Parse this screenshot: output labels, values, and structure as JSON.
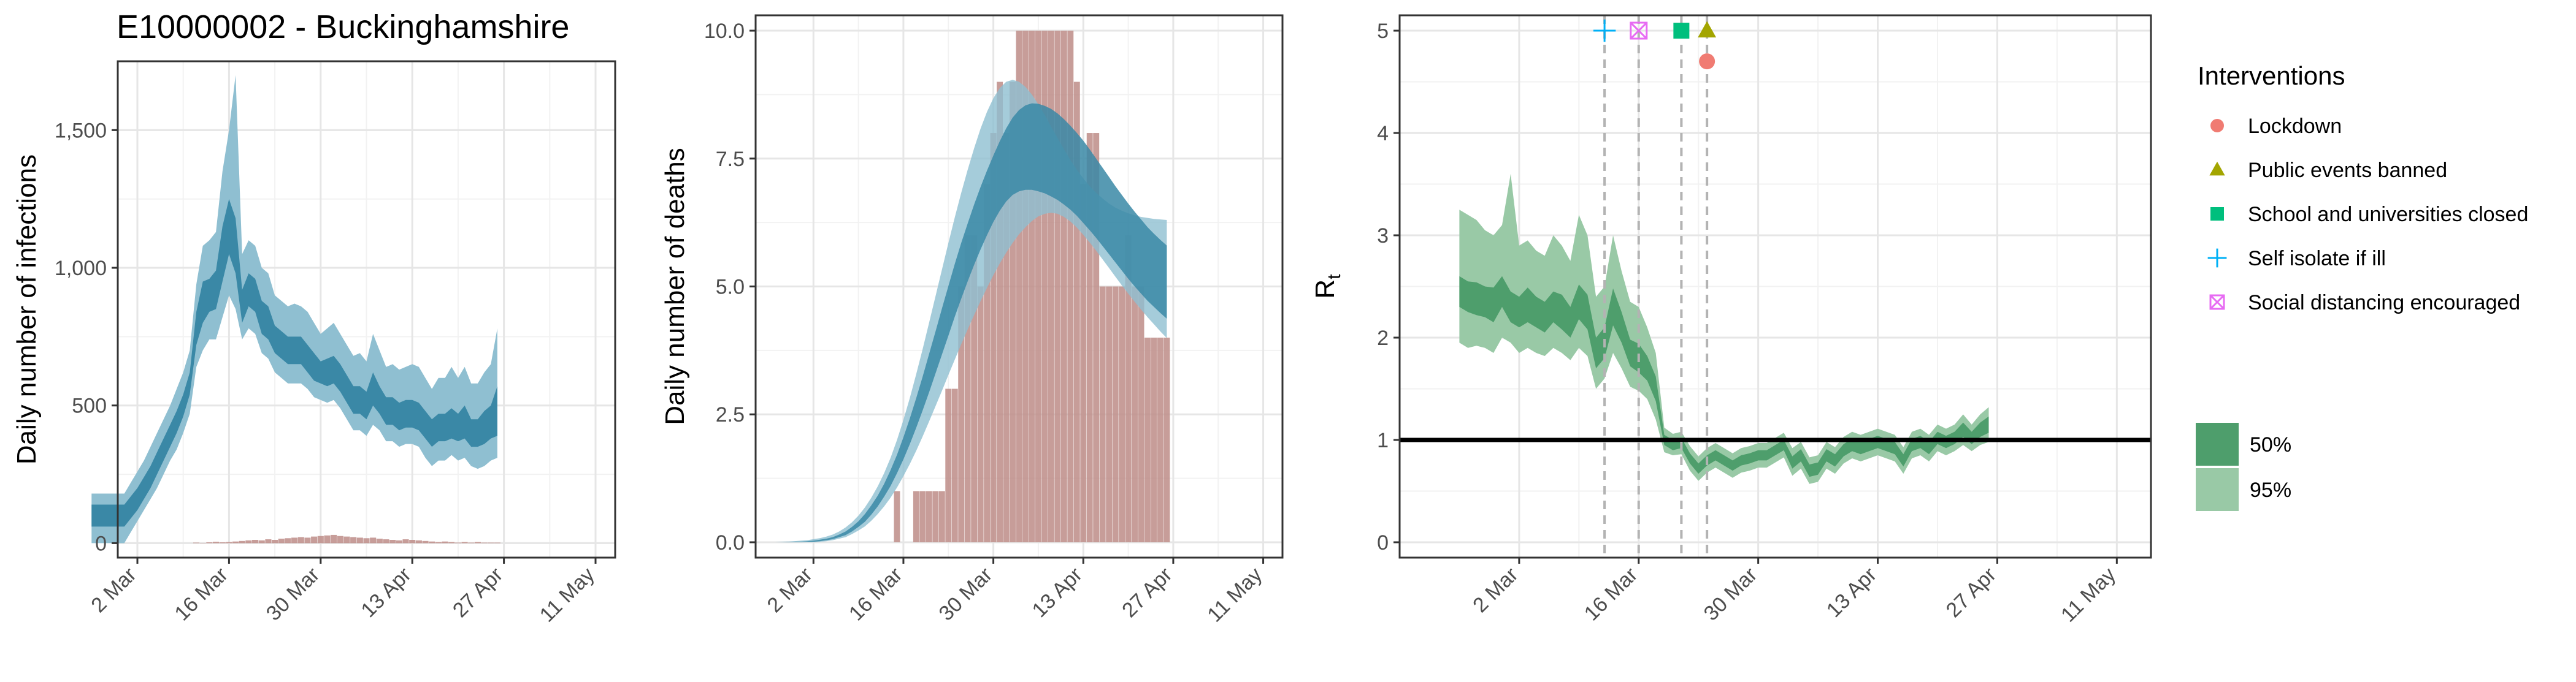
{
  "title": "E10000002 - Buckinghamshire",
  "x_tick_labels": [
    "2 Mar",
    "16 Mar",
    "30 Mar",
    "13 Apr",
    "27 Apr",
    "11 May"
  ],
  "colors": {
    "blue_band_50": "#3a88a6",
    "blue_band_95": "#8fbfd1",
    "bars": "#bd8c87",
    "green_band_50": "#4e9e6c",
    "green_band_95": "#99c9a6",
    "lockdown": "#f07b72",
    "public_events": "#a3a500",
    "school": "#00bf7d",
    "self_isolate": "#00b0f6",
    "social_distancing": "#e76bf3"
  },
  "chart_data": [
    {
      "type": "area",
      "ylabel": "Daily number of infections",
      "y_ticks": [
        "0",
        "500",
        "1,000",
        "1,500"
      ],
      "ylim": [
        0,
        1750
      ],
      "start_date": "2020-02-24",
      "bands": {
        "median": [
          100,
          100,
          100,
          100,
          100,
          100,
          130,
          160,
          200,
          240,
          290,
          340,
          390,
          440,
          500,
          580,
          780,
          880,
          900,
          920,
          1050,
          1150,
          1080,
          850,
          920,
          900,
          820,
          800,
          740,
          720,
          700,
          700,
          700,
          670,
          640,
          620,
          620,
          630,
          600,
          560,
          520,
          520,
          500,
          560,
          520,
          480,
          480,
          460,
          470,
          470,
          460,
          430,
          400,
          420,
          420,
          430,
          420,
          440,
          400,
          400,
          420,
          440,
          480
        ],
        "lo50": [
          60,
          60,
          60,
          60,
          60,
          60,
          90,
          120,
          160,
          200,
          250,
          300,
          350,
          400,
          460,
          540,
          720,
          800,
          840,
          850,
          950,
          1050,
          980,
          800,
          860,
          840,
          760,
          740,
          690,
          670,
          650,
          650,
          650,
          620,
          590,
          580,
          570,
          580,
          550,
          510,
          470,
          470,
          450,
          500,
          470,
          430,
          430,
          410,
          420,
          420,
          410,
          380,
          350,
          370,
          370,
          380,
          370,
          380,
          350,
          350,
          360,
          380,
          390
        ],
        "hi50": [
          140,
          140,
          140,
          140,
          140,
          140,
          170,
          200,
          240,
          280,
          330,
          380,
          430,
          480,
          540,
          620,
          840,
          950,
          960,
          990,
          1150,
          1250,
          1180,
          920,
          980,
          960,
          880,
          860,
          790,
          770,
          750,
          750,
          750,
          720,
          690,
          660,
          670,
          680,
          650,
          610,
          570,
          570,
          550,
          620,
          570,
          530,
          530,
          510,
          520,
          520,
          510,
          480,
          450,
          470,
          470,
          490,
          470,
          500,
          450,
          450,
          480,
          500,
          570
        ],
        "lo95": [
          0,
          0,
          0,
          0,
          0,
          0,
          40,
          80,
          120,
          160,
          200,
          250,
          300,
          340,
          400,
          470,
          640,
          700,
          740,
          740,
          820,
          900,
          850,
          740,
          780,
          760,
          690,
          670,
          620,
          600,
          580,
          580,
          580,
          560,
          530,
          520,
          510,
          520,
          490,
          450,
          410,
          410,
          390,
          430,
          410,
          370,
          370,
          350,
          360,
          360,
          350,
          310,
          280,
          300,
          300,
          320,
          300,
          310,
          280,
          270,
          280,
          300,
          310
        ],
        "hi95": [
          180,
          180,
          180,
          180,
          180,
          180,
          220,
          260,
          300,
          350,
          400,
          450,
          500,
          560,
          620,
          700,
          940,
          1080,
          1100,
          1130,
          1350,
          1500,
          1700,
          1050,
          1100,
          1080,
          1000,
          980,
          900,
          880,
          860,
          870,
          860,
          840,
          800,
          760,
          780,
          800,
          760,
          720,
          680,
          690,
          660,
          760,
          700,
          640,
          650,
          630,
          640,
          650,
          640,
          600,
          560,
          600,
          600,
          640,
          600,
          640,
          580,
          580,
          620,
          650,
          780
        ]
      },
      "bars": [
        0,
        0,
        0,
        0,
        0,
        0,
        0,
        0,
        0,
        0,
        0,
        0,
        0,
        0,
        0,
        0,
        2,
        1,
        3,
        5,
        3,
        4,
        6,
        8,
        10,
        12,
        10,
        14,
        12,
        16,
        18,
        20,
        22,
        20,
        24,
        26,
        28,
        30,
        26,
        24,
        22,
        20,
        18,
        20,
        16,
        14,
        12,
        10,
        14,
        12,
        10,
        8,
        6,
        4,
        6,
        4,
        2,
        4,
        2,
        4,
        2,
        2,
        2
      ]
    },
    {
      "type": "area",
      "ylabel": "Daily number of deaths",
      "y_ticks": [
        "0.0",
        "2.5",
        "5.0",
        "7.5",
        "10.0"
      ],
      "ylim": [
        0,
        10
      ],
      "start_date": "2020-02-24",
      "bands": {
        "median": [
          0.0,
          0.0,
          0.0,
          0.0,
          0.0,
          0.0,
          0.01,
          0.02,
          0.03,
          0.05,
          0.08,
          0.12,
          0.17,
          0.25,
          0.35,
          0.47,
          0.62,
          0.79,
          1.0,
          1.24,
          1.51,
          1.81,
          2.14,
          2.5,
          2.88,
          3.28,
          3.69,
          4.1,
          4.51,
          4.91,
          5.29,
          5.65,
          6.0,
          6.33,
          6.64,
          6.92,
          7.17,
          7.38,
          7.55,
          7.68,
          7.77,
          7.82,
          7.84,
          7.82,
          7.77,
          7.69,
          7.58,
          7.45,
          7.3,
          7.14,
          6.97,
          6.79,
          6.61,
          6.43,
          6.25,
          6.07,
          5.9,
          5.73,
          5.57,
          5.42,
          5.28,
          5.15,
          5.03
        ],
        "lo50": [
          0.0,
          0.0,
          0.0,
          0.0,
          0.0,
          0.0,
          0.01,
          0.01,
          0.02,
          0.04,
          0.06,
          0.1,
          0.14,
          0.21,
          0.3,
          0.4,
          0.54,
          0.7,
          0.89,
          1.1,
          1.35,
          1.62,
          1.92,
          2.24,
          2.58,
          2.93,
          3.3,
          3.67,
          4.04,
          4.41,
          4.76,
          5.1,
          5.42,
          5.72,
          6.0,
          6.26,
          6.48,
          6.66,
          6.79,
          6.86,
          6.89,
          6.89,
          6.86,
          6.82,
          6.76,
          6.69,
          6.6,
          6.5,
          6.38,
          6.24,
          6.1,
          5.95,
          5.79,
          5.63,
          5.47,
          5.31,
          5.15,
          5.0,
          4.86,
          4.72,
          4.6,
          4.48,
          4.37
        ],
        "hi50": [
          0.0,
          0.0,
          0.0,
          0.01,
          0.01,
          0.01,
          0.02,
          0.03,
          0.05,
          0.07,
          0.1,
          0.15,
          0.21,
          0.3,
          0.41,
          0.55,
          0.72,
          0.91,
          1.14,
          1.41,
          1.71,
          2.05,
          2.42,
          2.82,
          3.24,
          3.68,
          4.12,
          4.57,
          5.01,
          5.44,
          5.85,
          6.23,
          6.6,
          6.94,
          7.26,
          7.56,
          7.84,
          8.09,
          8.3,
          8.45,
          8.54,
          8.58,
          8.57,
          8.53,
          8.47,
          8.38,
          8.27,
          8.14,
          8.0,
          7.85,
          7.68,
          7.5,
          7.32,
          7.14,
          6.96,
          6.79,
          6.62,
          6.46,
          6.31,
          6.16,
          6.03,
          5.91,
          5.8
        ],
        "lo95": [
          0.0,
          0.0,
          0.0,
          0.0,
          0.0,
          0.0,
          0.0,
          0.0,
          0.01,
          0.02,
          0.04,
          0.07,
          0.1,
          0.16,
          0.23,
          0.31,
          0.42,
          0.55,
          0.7,
          0.87,
          1.07,
          1.29,
          1.53,
          1.79,
          2.07,
          2.36,
          2.66,
          2.96,
          3.27,
          3.57,
          3.87,
          4.16,
          4.44,
          4.71,
          4.97,
          5.22,
          5.45,
          5.66,
          5.85,
          6.02,
          6.16,
          6.28,
          6.37,
          6.42,
          6.44,
          6.42,
          6.36,
          6.27,
          6.15,
          6.01,
          5.86,
          5.7,
          5.53,
          5.36,
          5.19,
          5.02,
          4.86,
          4.7,
          4.55,
          4.4,
          4.26,
          4.12,
          3.99
        ],
        "hi95": [
          0.0,
          0.0,
          0.01,
          0.01,
          0.02,
          0.03,
          0.04,
          0.06,
          0.08,
          0.11,
          0.15,
          0.21,
          0.29,
          0.39,
          0.52,
          0.68,
          0.87,
          1.09,
          1.35,
          1.65,
          2.0,
          2.39,
          2.82,
          3.29,
          3.78,
          4.29,
          4.81,
          5.33,
          5.85,
          6.35,
          6.83,
          7.28,
          7.7,
          8.08,
          8.41,
          8.68,
          8.88,
          9.0,
          9.04,
          9.0,
          8.9,
          8.75,
          8.56,
          8.35,
          8.12,
          7.9,
          7.68,
          7.47,
          7.28,
          7.11,
          6.96,
          6.83,
          6.72,
          6.62,
          6.54,
          6.48,
          6.43,
          6.39,
          6.36,
          6.34,
          6.32,
          6.31,
          6.3
        ]
      },
      "bars": [
        0,
        0,
        0,
        0,
        0,
        0,
        0,
        0,
        0,
        0,
        0,
        0,
        0,
        0,
        0,
        0,
        0,
        0,
        0,
        0,
        1,
        0,
        0,
        1,
        1,
        1,
        1,
        1,
        3,
        3,
        5,
        6,
        6,
        5,
        7,
        8,
        9,
        8,
        9,
        10,
        10,
        10,
        10,
        10,
        10,
        10,
        10,
        10,
        9,
        7,
        8,
        8,
        5,
        5,
        5,
        5,
        6,
        5,
        5,
        4,
        4,
        4,
        4
      ]
    },
    {
      "type": "area",
      "ylabel": "R",
      "ylabel_subscript": "t",
      "y_ticks": [
        "0",
        "1",
        "2",
        "3",
        "4",
        "5"
      ],
      "ylim": [
        0,
        5
      ],
      "start_date": "2020-02-24",
      "reference_line": 1,
      "bands": {
        "median": [
          2.45,
          2.4,
          2.38,
          2.35,
          2.32,
          2.45,
          2.3,
          2.25,
          2.32,
          2.25,
          2.2,
          2.3,
          2.25,
          2.15,
          2.35,
          2.25,
          1.85,
          1.95,
          2.3,
          2.1,
          1.85,
          1.8,
          1.7,
          1.5,
          1.0,
          0.95,
          0.97,
          0.82,
          0.72,
          0.8,
          0.85,
          0.8,
          0.75,
          0.8,
          0.82,
          0.85,
          0.85,
          0.9,
          0.95,
          0.78,
          0.85,
          0.7,
          0.72,
          0.85,
          0.8,
          0.9,
          0.95,
          0.92,
          0.95,
          0.98,
          0.95,
          0.92,
          0.8,
          0.95,
          0.98,
          0.92,
          1.02,
          0.98,
          1.02,
          1.1,
          1.02,
          1.1,
          1.15
        ],
        "lo50": [
          2.3,
          2.25,
          2.22,
          2.2,
          2.15,
          2.3,
          2.15,
          2.1,
          2.15,
          2.1,
          2.05,
          2.15,
          2.08,
          2.0,
          2.18,
          2.08,
          1.7,
          1.8,
          2.12,
          1.95,
          1.72,
          1.66,
          1.58,
          1.38,
          0.95,
          0.9,
          0.92,
          0.77,
          0.67,
          0.75,
          0.8,
          0.75,
          0.7,
          0.75,
          0.77,
          0.8,
          0.8,
          0.85,
          0.9,
          0.72,
          0.79,
          0.64,
          0.66,
          0.79,
          0.74,
          0.84,
          0.89,
          0.86,
          0.89,
          0.92,
          0.89,
          0.86,
          0.74,
          0.89,
          0.92,
          0.86,
          0.96,
          0.92,
          0.96,
          1.03,
          0.96,
          1.03,
          1.07
        ],
        "hi50": [
          2.6,
          2.55,
          2.54,
          2.5,
          2.49,
          2.6,
          2.45,
          2.4,
          2.49,
          2.4,
          2.35,
          2.45,
          2.42,
          2.3,
          2.52,
          2.42,
          2.0,
          2.1,
          2.48,
          2.25,
          1.98,
          1.94,
          1.82,
          1.62,
          1.05,
          1.0,
          1.02,
          0.87,
          0.77,
          0.85,
          0.9,
          0.85,
          0.8,
          0.85,
          0.87,
          0.9,
          0.9,
          0.95,
          1.0,
          0.84,
          0.91,
          0.76,
          0.78,
          0.91,
          0.86,
          0.96,
          1.01,
          0.98,
          1.01,
          1.04,
          1.01,
          0.98,
          0.86,
          1.01,
          1.04,
          0.98,
          1.08,
          1.04,
          1.08,
          1.17,
          1.08,
          1.17,
          1.23
        ],
        "lo95": [
          1.95,
          1.9,
          1.92,
          1.9,
          1.85,
          2.0,
          1.95,
          1.85,
          1.9,
          1.85,
          1.82,
          1.9,
          1.85,
          1.78,
          1.9,
          1.82,
          1.5,
          1.6,
          1.85,
          1.7,
          1.52,
          1.48,
          1.4,
          1.2,
          0.88,
          0.85,
          0.86,
          0.7,
          0.6,
          0.68,
          0.73,
          0.68,
          0.63,
          0.68,
          0.7,
          0.73,
          0.73,
          0.78,
          0.83,
          0.65,
          0.72,
          0.57,
          0.59,
          0.72,
          0.67,
          0.77,
          0.82,
          0.79,
          0.82,
          0.85,
          0.82,
          0.79,
          0.67,
          0.82,
          0.85,
          0.79,
          0.89,
          0.85,
          0.89,
          0.95,
          0.89,
          0.95,
          0.98
        ],
        "hi95": [
          3.25,
          3.2,
          3.15,
          3.05,
          3.0,
          3.1,
          3.6,
          2.9,
          2.95,
          2.85,
          2.8,
          3.0,
          2.9,
          2.75,
          3.2,
          3.0,
          2.4,
          2.5,
          3.0,
          2.65,
          2.35,
          2.3,
          2.1,
          1.85,
          1.12,
          1.06,
          1.08,
          0.94,
          0.84,
          0.92,
          0.97,
          0.92,
          0.87,
          0.92,
          0.94,
          0.97,
          0.97,
          1.02,
          1.07,
          0.92,
          0.98,
          0.83,
          0.85,
          0.98,
          0.93,
          1.03,
          1.08,
          1.05,
          1.08,
          1.11,
          1.08,
          1.05,
          0.93,
          1.08,
          1.11,
          1.05,
          1.15,
          1.11,
          1.15,
          1.25,
          1.15,
          1.25,
          1.32
        ]
      },
      "interventions": [
        {
          "name": "Self isolate if ill",
          "date": "2020-03-12",
          "symbol": "plus",
          "y": 5.0
        },
        {
          "name": "Social distancing encouraged",
          "date": "2020-03-16",
          "symbol": "box-x",
          "y": 5.0
        },
        {
          "name": "School and universities closed",
          "date": "2020-03-21",
          "symbol": "square",
          "y": 5.0
        },
        {
          "name": "Public events banned",
          "date": "2020-03-24",
          "symbol": "triangle",
          "y": 5.0
        },
        {
          "name": "Lockdown",
          "date": "2020-03-24",
          "symbol": "circle",
          "y": 4.7
        }
      ]
    }
  ],
  "legend": {
    "interventions_title": "Interventions",
    "interventions": [
      {
        "label": "Lockdown",
        "symbol": "circle",
        "color": "#f07b72"
      },
      {
        "label": "Public events banned",
        "symbol": "triangle",
        "color": "#a3a500"
      },
      {
        "label": "School and universities closed",
        "symbol": "square",
        "color": "#00bf7d"
      },
      {
        "label": "Self isolate if ill",
        "symbol": "plus",
        "color": "#00b0f6"
      },
      {
        "label": "Social distancing encouraged",
        "symbol": "box-x",
        "color": "#e76bf3"
      }
    ],
    "bands": [
      {
        "label": "50%",
        "color": "#4e9e6c"
      },
      {
        "label": "95%",
        "color": "#99c9a6"
      }
    ]
  }
}
